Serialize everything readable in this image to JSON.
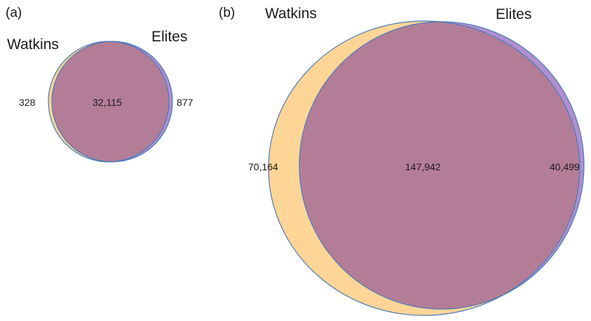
{
  "colors": {
    "watkins_fill": "#fdd597",
    "elites_fill": "#b08fd0",
    "overlap_fill": "#b47d97",
    "outline": "#4a7ab8"
  },
  "panels": [
    {
      "label": "(a)",
      "set_a": "Watkins",
      "set_b": "Elites",
      "only_a": "328",
      "overlap": "32,115",
      "only_b": "877"
    },
    {
      "label": "(b)",
      "set_a": "Watkins",
      "set_b": "Elites",
      "only_a": "70,164",
      "overlap": "147,942",
      "only_b": "40,499"
    }
  ]
}
